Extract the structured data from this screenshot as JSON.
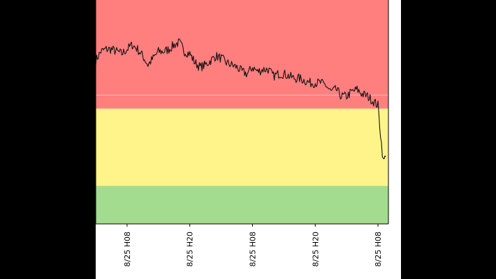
{
  "colors": {
    "background": "#000000",
    "panel": "#ffffff",
    "zone_high": "#ff7f7f",
    "zone_mid": "#fff48a",
    "zone_low": "#a3dc8f",
    "reference_line": "#f2b8b8",
    "series": "#111111",
    "axis": "#000000"
  },
  "chart_data": {
    "type": "line",
    "title": "",
    "xlabel": "",
    "ylabel": "",
    "x_tick_labels": [
      "8/25 H08",
      "8/25 H20",
      "8/25 H08",
      "8/25 H20",
      "8/25 H08"
    ],
    "x_tick_positions": [
      6,
      18,
      30,
      42,
      54
    ],
    "xlim": [
      0,
      56
    ],
    "ylim": [
      0,
      100
    ],
    "grid": false,
    "legend": "none",
    "bands": [
      {
        "from": 0,
        "to": 17,
        "color": "#a3dc8f"
      },
      {
        "from": 17,
        "to": 51.5,
        "color": "#fff48a"
      },
      {
        "from": 51.5,
        "to": 100,
        "color": "#ff7f7f"
      }
    ],
    "reference_line": 57.5,
    "series": [
      {
        "x": [
          0,
          1,
          2,
          3,
          4,
          5,
          6,
          7,
          8,
          9,
          10,
          11,
          12,
          13,
          14,
          15,
          16,
          17,
          18,
          19,
          20,
          21,
          22,
          23,
          24,
          25,
          26,
          27,
          28,
          29,
          30,
          31,
          32,
          33,
          34,
          35,
          36,
          37,
          38,
          39,
          40,
          41,
          42,
          43,
          44,
          45,
          46,
          47,
          48,
          49,
          50,
          51,
          52,
          53,
          54,
          54.5,
          55,
          55.5
        ],
        "y": [
          73,
          77,
          78,
          78,
          77,
          76,
          78,
          80,
          78,
          75,
          71,
          74,
          77,
          77,
          78,
          80,
          81,
          77,
          76,
          72,
          70,
          71,
          73,
          75,
          74,
          72,
          71,
          70,
          68,
          67,
          70,
          68,
          69,
          69,
          66,
          67,
          67,
          66,
          65,
          65,
          64,
          63,
          63,
          63,
          62,
          59,
          60,
          57,
          57,
          59,
          60,
          58,
          57,
          55,
          53,
          40,
          28,
          30
        ]
      }
    ]
  }
}
